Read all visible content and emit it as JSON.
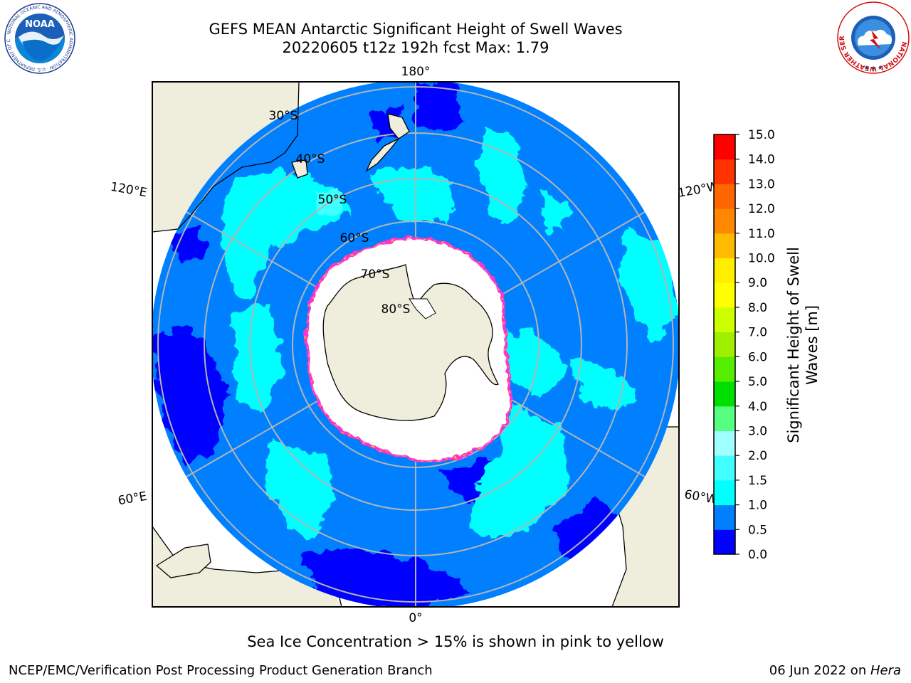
{
  "header": {
    "title_line1": "GEFS MEAN Antarctic Significant Height of Swell Waves",
    "title_line2": "20220605 t12z 192h fcst   Max: 1.79"
  },
  "logos": {
    "left": {
      "name": "NOAA",
      "ring_text": "NATIONAL OCEANIC AND ATMOSPHERIC ADMINISTRATION · U.S. DEPARTMENT OF COMMERCE"
    },
    "right": {
      "name": "National Weather Service",
      "ring_text": "NATIONAL WEATHER SERVICE"
    }
  },
  "map": {
    "projection": "south polar stereographic",
    "longitude_labels": [
      "180°",
      "120°E",
      "120°W",
      "60°E",
      "60°W",
      "0°"
    ],
    "latitude_labels": [
      "30°S",
      "40°S",
      "50°S",
      "60°S",
      "70°S",
      "80°S"
    ],
    "colors": {
      "land": "#efeedc",
      "sea_ice": "#ffffff",
      "ice_edge": "#ff33cc",
      "graticule": "#b4b4b4"
    }
  },
  "colorbar": {
    "label_line1": "Significant Height of Swell",
    "label_line2": "Waves [m]",
    "ticks": [
      "0.0",
      "0.5",
      "1.0",
      "1.5",
      "2.0",
      "3.0",
      "4.0",
      "5.0",
      "6.0",
      "7.0",
      "8.0",
      "9.0",
      "10.0",
      "11.0",
      "12.0",
      "13.0",
      "14.0",
      "15.0"
    ],
    "colors": [
      "#0000ff",
      "#0080ff",
      "#00ffff",
      "#40ffff",
      "#a0ffff",
      "#55ff80",
      "#00e000",
      "#55ee00",
      "#a0ee00",
      "#ccff00",
      "#ffff00",
      "#ffee00",
      "#ffbb00",
      "#ff8800",
      "#ff6600",
      "#ff3300",
      "#ff0000"
    ]
  },
  "caption": "Sea Ice Concentration > 15% is shown in pink to yellow",
  "footer": {
    "left": "NCEP/EMC/Verification Post Processing Product Generation Branch",
    "right_date": "06 Jun 2022 on ",
    "right_host": "Hera"
  }
}
